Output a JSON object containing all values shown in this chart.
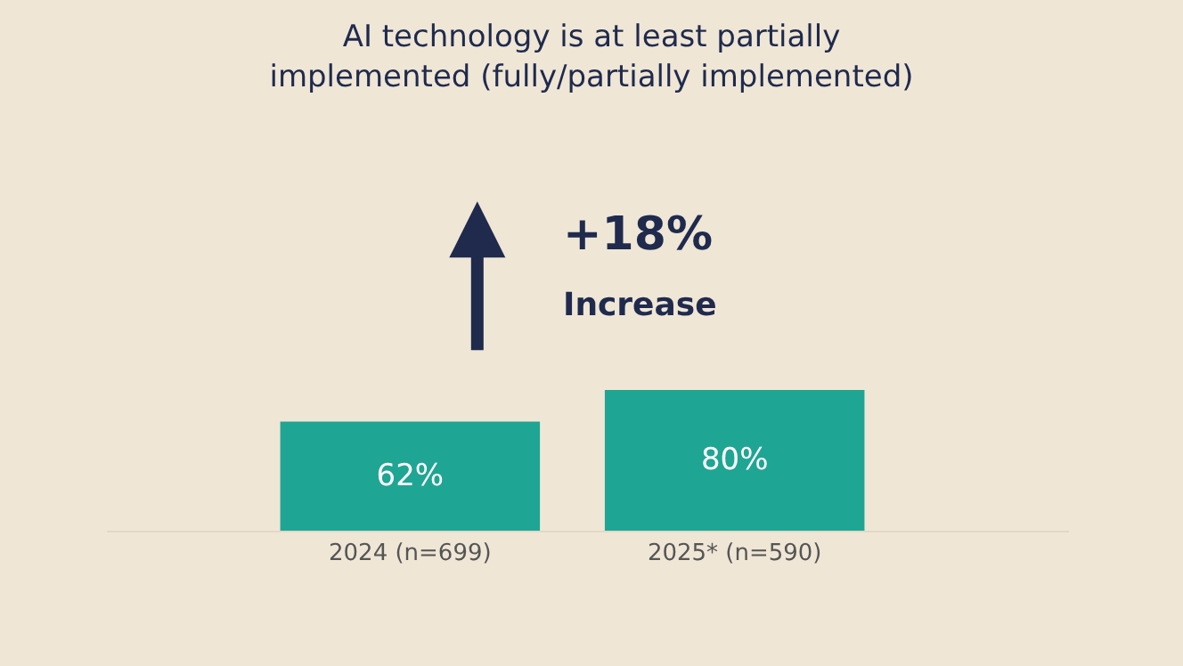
{
  "chart_data": {
    "type": "bar",
    "title": "AI technology is at least partially\nimplemented (fully/partially implemented)",
    "categories": [
      "2024 (n=699)",
      "2025* (n=590)"
    ],
    "values": [
      62,
      80
    ],
    "color": "#1fa593",
    "data_labels": true,
    "value_labels": [
      "62%",
      "80%"
    ],
    "annotations": [
      "+18%",
      "Increase"
    ]
  }
}
